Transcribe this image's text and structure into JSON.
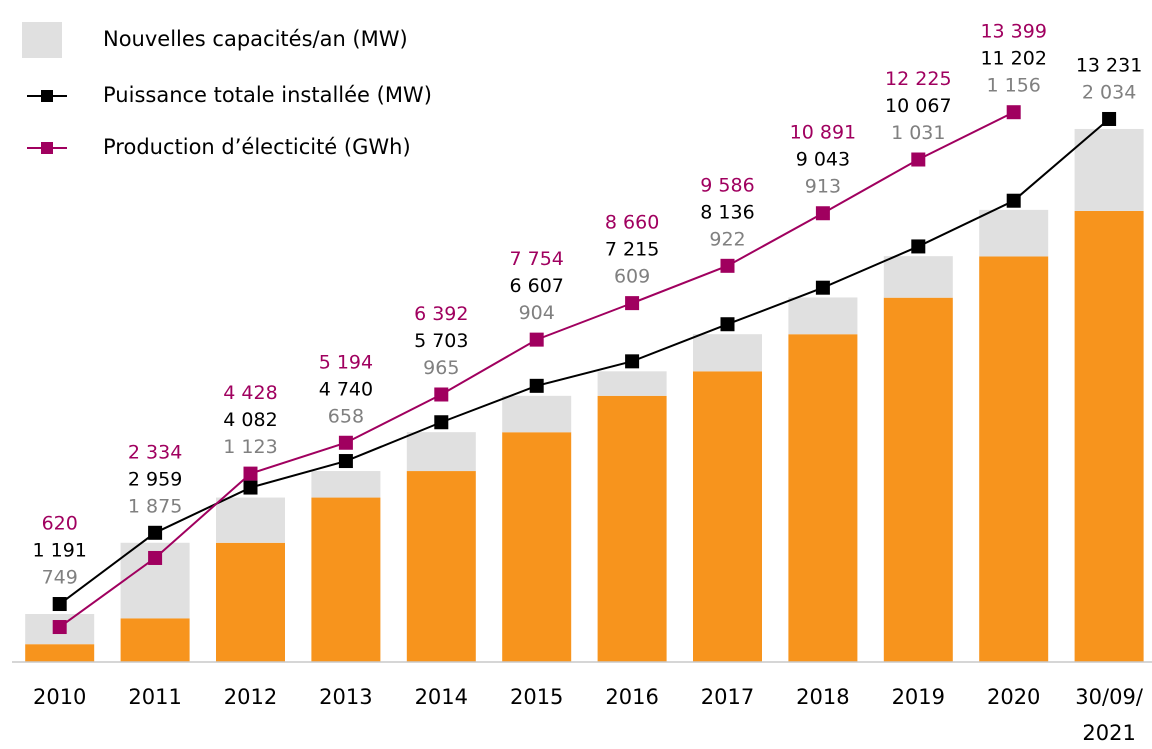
{
  "chart_data": {
    "type": "combo",
    "categories": [
      "2010",
      "2011",
      "2012",
      "2013",
      "2014",
      "2015",
      "2016",
      "2017",
      "2018",
      "2019",
      "2020",
      "30/09/2021"
    ],
    "ylim": [
      0,
      14000
    ],
    "bar_base": {
      "color": "#f7941d",
      "values": [
        442,
        1084,
        2959,
        4082,
        4740,
        5703,
        6607,
        7215,
        8136,
        9043,
        10067,
        11197
      ]
    },
    "series": [
      {
        "name": "Nouvelles capacités/an (MW)",
        "color": "#e0e0e0",
        "label_color": "#808080",
        "kind": "bar",
        "values": [
          749,
          1875,
          1123,
          658,
          965,
          904,
          609,
          922,
          913,
          1031,
          1156,
          2034
        ],
        "value_labels": [
          "749",
          "1 875",
          "1 123",
          "658",
          "965",
          "904",
          "609",
          "922",
          "913",
          "1 031",
          "1 156",
          "2 034"
        ]
      },
      {
        "name": "Puissance totale installée (MW)",
        "color": "#000000",
        "label_color": "#000000",
        "kind": "line",
        "values": [
          1191,
          2959,
          4082,
          4740,
          5703,
          6607,
          7215,
          8136,
          9043,
          10067,
          11202,
          13231
        ],
        "value_labels": [
          "1 191",
          "2 959",
          "4 082",
          "4 740",
          "5 703",
          "6 607",
          "7 215",
          "8 136",
          "9 043",
          "10 067",
          "11 202",
          "13 231"
        ]
      },
      {
        "name": "Production d’électicité (GWh)",
        "color": "#a0005f",
        "label_color": "#a0005f",
        "kind": "line",
        "values": [
          620,
          2334,
          4428,
          5194,
          6392,
          7754,
          8660,
          9586,
          10891,
          12225,
          13399,
          null
        ],
        "value_labels": [
          "620",
          "2 334",
          "4 428",
          "5 194",
          "6 392",
          "7 754",
          "8 660",
          "9 586",
          "10 891",
          "12 225",
          "13 399",
          null
        ]
      }
    ]
  }
}
